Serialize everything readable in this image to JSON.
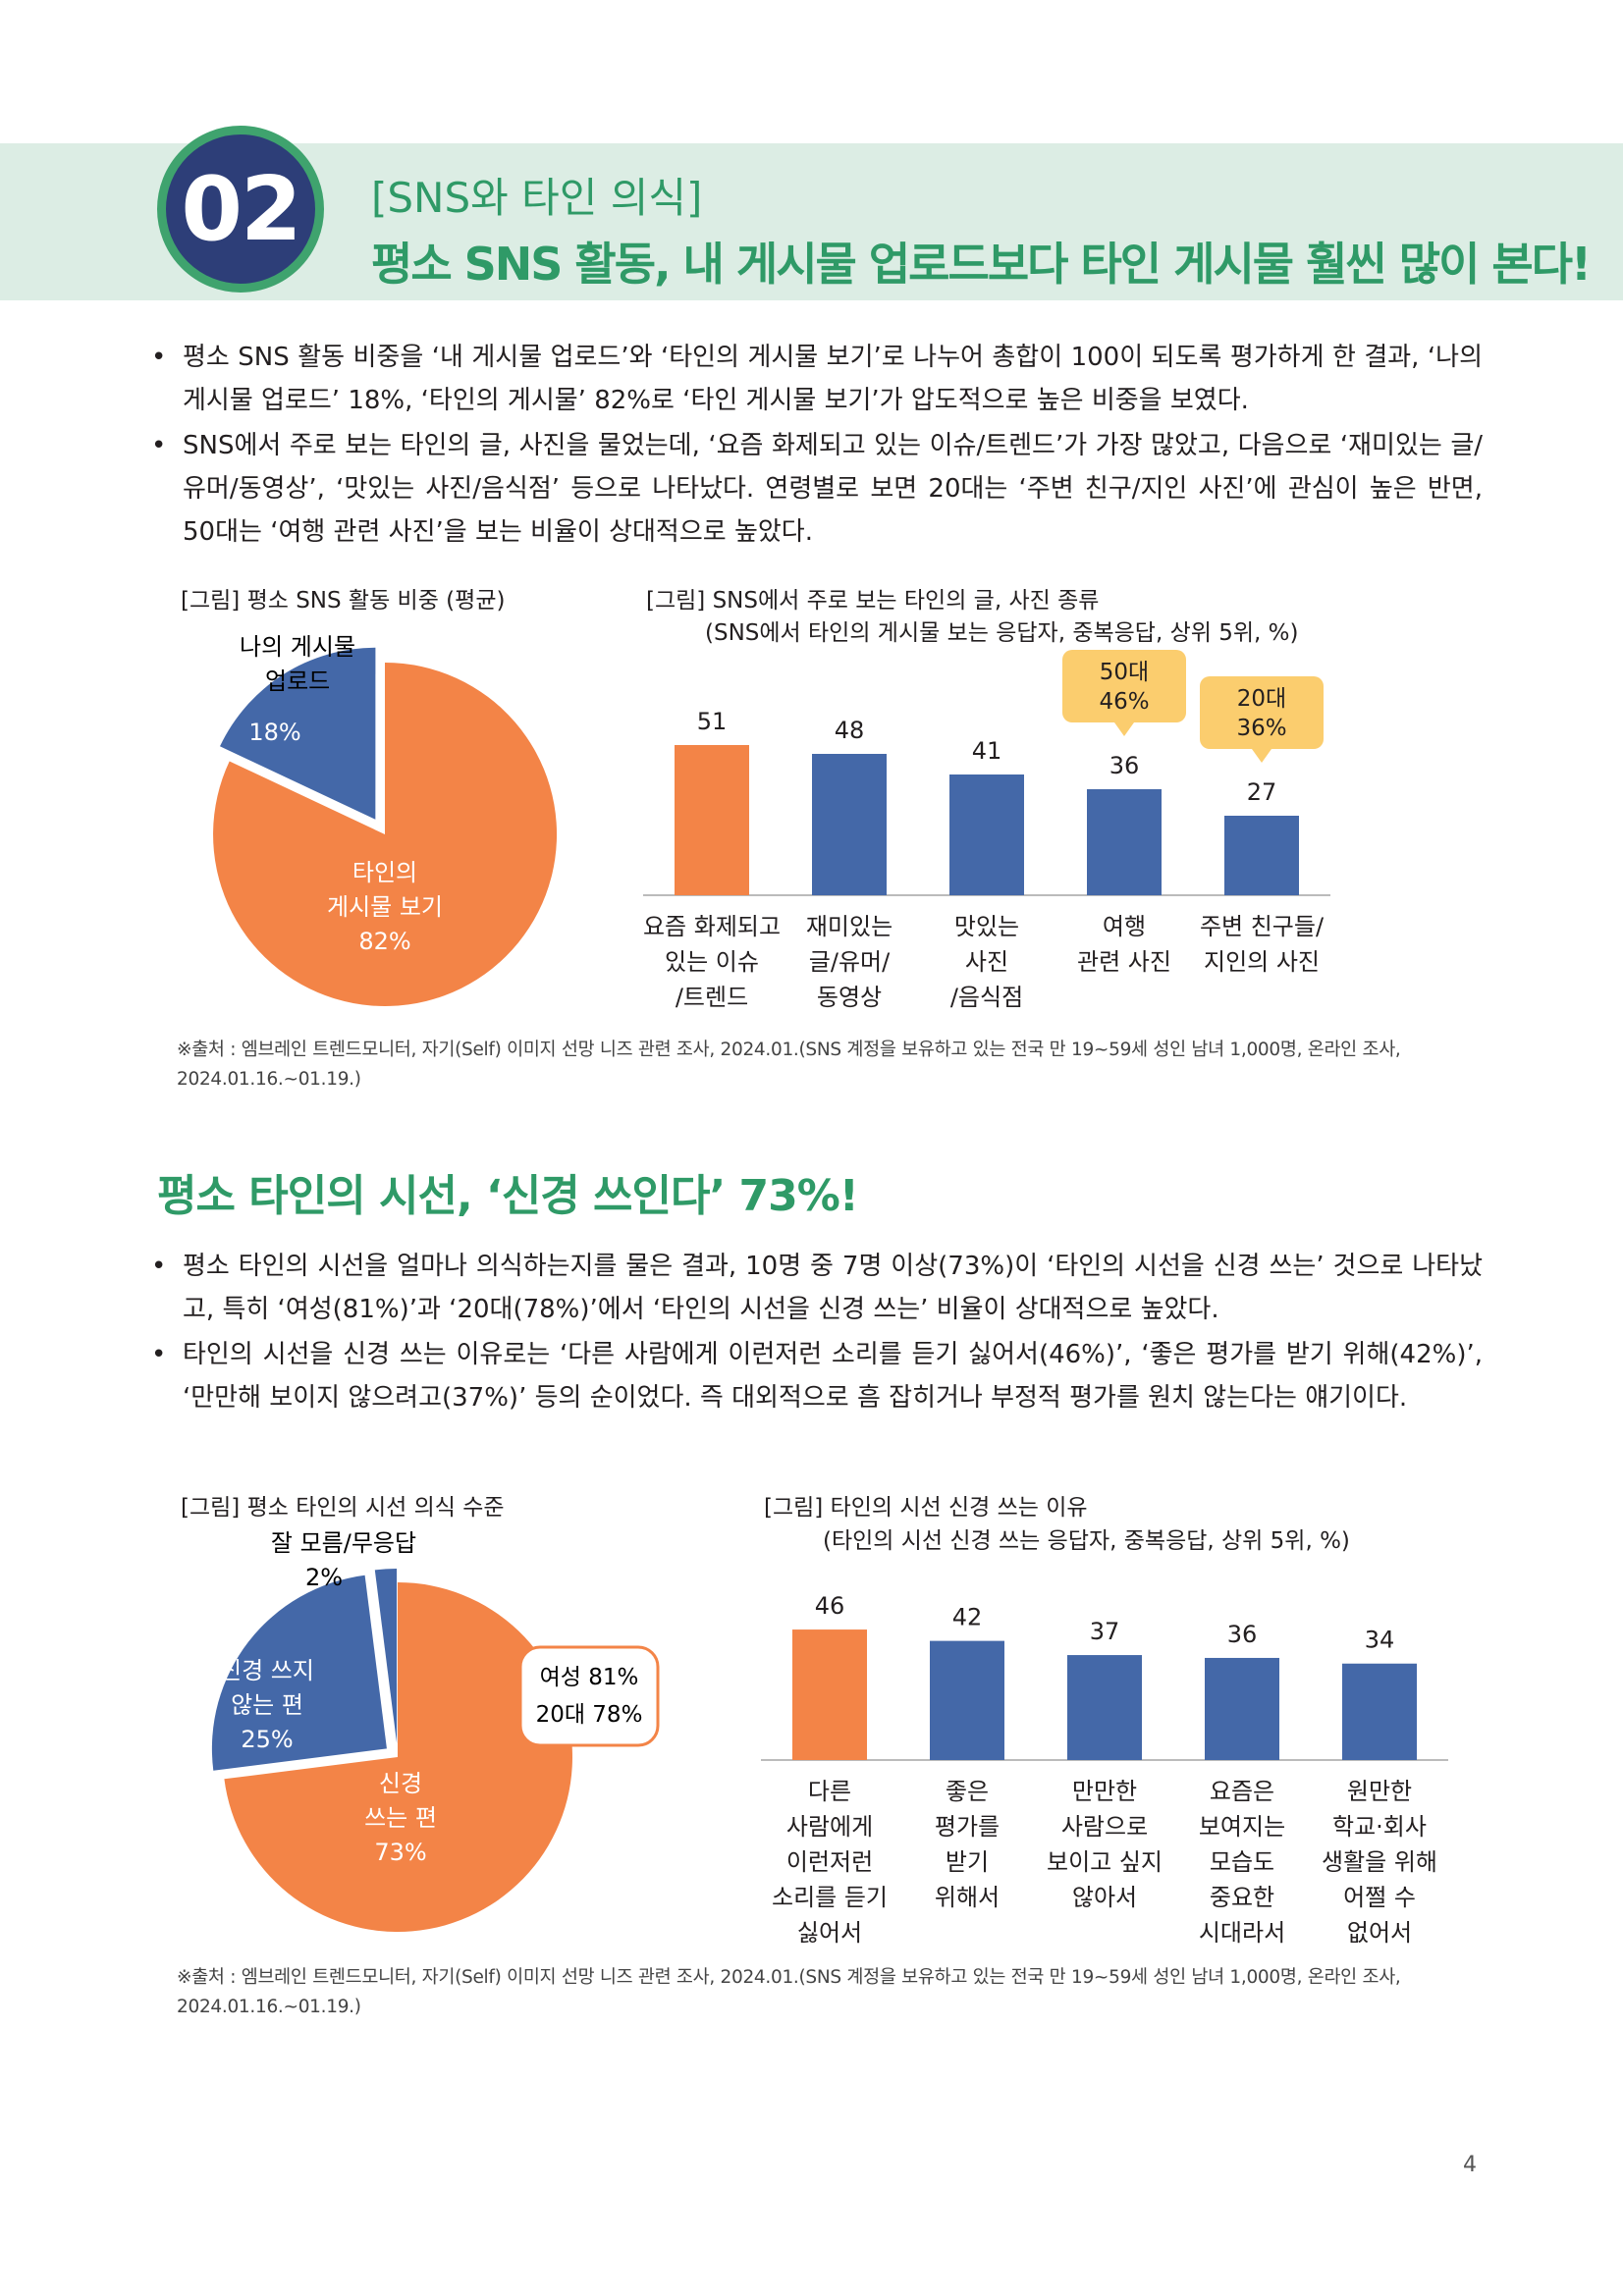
{
  "header": {
    "badge_number": "02",
    "subtitle": "[SNS와 타인 의식]",
    "title": "평소 SNS 활동, 내 게시물 업로드보다 타인 게시물 훨씬 많이 본다!"
  },
  "section1": {
    "bullets": [
      "평소 SNS 활동 비중을 ‘내 게시물 업로드’와 ‘타인의 게시물 보기’로 나누어 총합이 100이 되도록 평가하게 한 결과, ‘나의 게시물 업로드’ 18%, ‘타인의 게시물’ 82%로 ‘타인 게시물 보기’가 압도적으로 높은 비중을 보였다.",
      "SNS에서 주로 보는 타인의 글, 사진을 물었는데, ‘요즘 화제되고 있는 이슈/트렌드’가 가장 많았고, 다음으로 ‘재미있는 글/유머/동영상’, ‘맛있는 사진/음식점’ 등으로 나타났다. 연령별로 보면 20대는 ‘주변 친구/지인 사진’에 관심이 높은 반면, 50대는 ‘여행 관련 사진’을 보는 비율이 상대적으로 높았다."
    ],
    "source": "※출처 : 엠브레인 트렌드모니터, 자기(Self) 이미지 선망 니즈 관련 조사, 2024.01.(SNS 계정을 보유하고 있는 전국 만 19~59세 성인 남녀 1,000명, 온라인 조사, 2024.01.16.~01.19.)"
  },
  "section2": {
    "heading": "평소 타인의 시선, ‘신경 쓰인다’ 73%!",
    "bullets": [
      "평소 타인의 시선을 얼마나 의식하는지를 물은 결과, 10명 중 7명 이상(73%)이 ‘타인의 시선을 신경 쓰는’ 것으로 나타났고, 특히 ‘여성(81%)’과 ‘20대(78%)’에서 ‘타인의 시선을 신경 쓰는’ 비율이 상대적으로 높았다.",
      "타인의 시선을 신경 쓰는 이유로는 ‘다른 사람에게 이런저런 소리를 듣기 싫어서(46%)’, ‘좋은 평가를 받기 위해(42%)’, ‘만만해 보이지 않으려고(37%)’ 등의 순이었다. 즉 대외적으로 흠 잡히거나 부정적 평가를 원치 않는다는 얘기이다."
    ],
    "source": "※출처 : 엠브레인 트렌드모니터, 자기(Self) 이미지 선망 니즈 관련 조사, 2024.01.(SNS 계정을 보유하고 있는 전국 만 19~59세 성인 남녀 1,000명, 온라인 조사, 2024.01.16.~01.19.)"
  },
  "colors": {
    "orange": "#f38447",
    "blue": "#4468a8",
    "green": "#2f9a67",
    "callout": "#fbcd6e",
    "navy": "#2d3e78"
  },
  "chart_data": [
    {
      "type": "pie",
      "title": "[그림] 평소 SNS 활동 비중 (평균)",
      "slices": [
        {
          "label_lines": [
            "나의 게시물",
            "업로드"
          ],
          "value_label": "18%",
          "value": 18,
          "color": "#4468a8"
        },
        {
          "label_lines": [
            "타인의",
            "게시물 보기"
          ],
          "value_label": "82%",
          "value": 82,
          "color": "#f38447"
        }
      ]
    },
    {
      "type": "bar",
      "title": "[그림] SNS에서 주로 보는 타인의 글, 사진 종류",
      "subtitle": "(SNS에서 타인의 게시물 보는 응답자, 중복응답, 상위 5위, %)",
      "categories": [
        [
          "요즘 화제되고",
          "있는 이슈",
          "/트렌드"
        ],
        [
          "재미있는",
          "글/유머/",
          "동영상"
        ],
        [
          "맛있는",
          "사진",
          "/음식점"
        ],
        [
          "여행",
          "관련 사진"
        ],
        [
          "주변 친구들/",
          "지인의 사진"
        ]
      ],
      "values": [
        51,
        48,
        41,
        36,
        27
      ],
      "colors": [
        "#f38447",
        "#4468a8",
        "#4468a8",
        "#4468a8",
        "#4468a8"
      ],
      "ylim": [
        0,
        60
      ],
      "callouts": [
        {
          "index": 3,
          "lines": [
            "50대",
            "46%"
          ]
        },
        {
          "index": 4,
          "lines": [
            "20대",
            "36%"
          ]
        }
      ]
    },
    {
      "type": "pie",
      "title": "[그림] 평소 타인의 시선 의식 수준",
      "slices": [
        {
          "label_lines": [
            "신경",
            "쓰는 편"
          ],
          "value_label": "73%",
          "value": 73,
          "color": "#f38447"
        },
        {
          "label_lines": [
            "잘 모름/무응답"
          ],
          "value_label": "2%",
          "value": 2,
          "color": "#4468a8"
        },
        {
          "label_lines": [
            "신경 쓰지",
            "않는 편"
          ],
          "value_label": "25%",
          "value": 25,
          "color": "#4468a8"
        }
      ],
      "callout_lines": [
        "여성 81%",
        "20대 78%"
      ]
    },
    {
      "type": "bar",
      "title": "[그림] 타인의 시선 신경 쓰는 이유",
      "subtitle": "(타인의 시선 신경 쓰는 응답자, 중복응답, 상위 5위, %)",
      "categories": [
        [
          "다른",
          "사람에게",
          "이런저런",
          "소리를 듣기",
          "싫어서"
        ],
        [
          "좋은",
          "평가를",
          "받기",
          "위해서"
        ],
        [
          "만만한",
          "사람으로",
          "보이고 싶지",
          "않아서"
        ],
        [
          "요즘은",
          "보여지는",
          "모습도",
          "중요한",
          "시대라서"
        ],
        [
          "원만한",
          "학교·회사",
          "생활을 위해",
          "어쩔 수",
          "없어서"
        ]
      ],
      "values": [
        46,
        42,
        37,
        36,
        34
      ],
      "colors": [
        "#f38447",
        "#4468a8",
        "#4468a8",
        "#4468a8",
        "#4468a8"
      ],
      "ylim": [
        0,
        60
      ]
    }
  ],
  "page_number": "4"
}
